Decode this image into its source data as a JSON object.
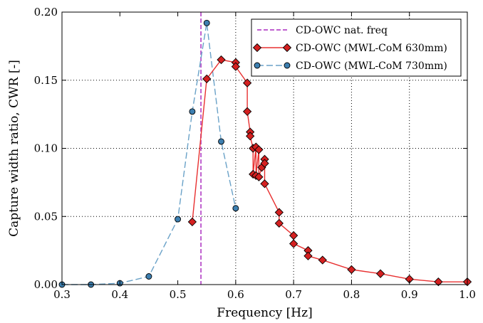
{
  "chart_data": {
    "type": "line",
    "xlabel": "Frequency [Hz]",
    "ylabel": "Capture width ratio, CWR [-]",
    "xlim": [
      0.3,
      1.0
    ],
    "ylim": [
      0.0,
      0.2
    ],
    "x_ticks": [
      "0.3",
      "0.4",
      "0.5",
      "0.6",
      "0.7",
      "0.8",
      "0.9",
      "1.0"
    ],
    "y_ticks": [
      "0.00",
      "0.05",
      "0.10",
      "0.15",
      "0.20"
    ],
    "grid": "dotted vertical lines at x ticks 0.6–0.9; horizontal lines at y ticks",
    "legend_position": "top-right",
    "natural_frequency": {
      "name": "CD-OWC nat. freq",
      "x": 0.54,
      "color": "#bf5fcf",
      "style": "dashed"
    },
    "series": [
      {
        "name": "CD-OWC (MWL-CoM 630mm)",
        "color": "#e83030",
        "marker_fill": "#d42020",
        "marker": "diamond",
        "line_style": "solid",
        "x": [
          0.525,
          0.55,
          0.575,
          0.6,
          0.6,
          0.62,
          0.62,
          0.625,
          0.625,
          0.63,
          0.63,
          0.635,
          0.635,
          0.64,
          0.64,
          0.645,
          0.65,
          0.65,
          0.65,
          0.675,
          0.675,
          0.7,
          0.7,
          0.725,
          0.725,
          0.75,
          0.8,
          0.85,
          0.9,
          0.95,
          1.0
        ],
        "y": [
          0.046,
          0.151,
          0.165,
          0.163,
          0.16,
          0.148,
          0.127,
          0.112,
          0.109,
          0.1,
          0.081,
          0.101,
          0.08,
          0.099,
          0.079,
          0.086,
          0.092,
          0.089,
          0.074,
          0.053,
          0.045,
          0.036,
          0.03,
          0.025,
          0.021,
          0.018,
          0.011,
          0.008,
          0.004,
          0.002,
          0.002
        ]
      },
      {
        "name": "CD-OWC (MWL-CoM 730mm)",
        "color": "#6aa2c8",
        "marker_fill": "#3d7fb0",
        "marker": "circle",
        "line_style": "dashed",
        "x": [
          0.3,
          0.35,
          0.4,
          0.45,
          0.5,
          0.525,
          0.55,
          0.575,
          0.6
        ],
        "y": [
          0.0,
          0.0,
          0.001,
          0.006,
          0.048,
          0.127,
          0.192,
          0.105,
          0.056
        ]
      }
    ]
  }
}
